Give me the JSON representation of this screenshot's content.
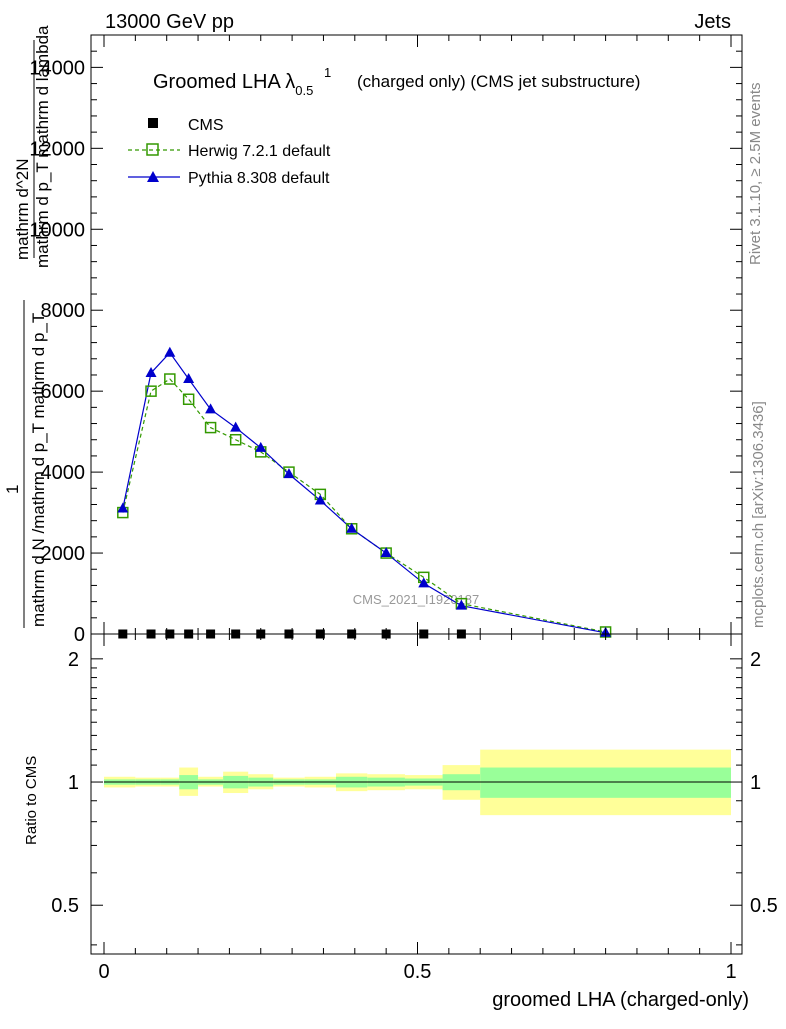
{
  "header": {
    "left": "13000 GeV pp",
    "right": "Jets"
  },
  "side_text": {
    "rivet": "Rivet 3.1.10, ≥ 2.5M events",
    "mcplots": "mcplots.cern.ch [arXiv:1306.3436]"
  },
  "watermark": "CMS_2021_I1920187",
  "colors": {
    "cms": "#000000",
    "herwig": "#339900",
    "pythia": "#0000cc",
    "band_inner": "#99ff99",
    "band_outer": "#ffff99"
  },
  "chart_data": [
    {
      "type": "line",
      "title": "Groomed LHA λ",
      "title_sup": "1",
      "title_sub": "0.5",
      "title_suffix": "(charged only) (CMS jet substructure)",
      "ylabel_main": "1 / mathrm d N /mathrm d p_T mathrm d p_T",
      "ylabel_extra": "mathrm d^2N / mathrm d p_T mathrm d lambda",
      "ylabel_lines": [
        "mathrm d^2N",
        "mathrm d p_T mathrm d lambda",
        "1",
        "mathrm d N /mathrm d p_T mathrm d p_T"
      ],
      "ylim": [
        0,
        14800
      ],
      "yticks": [
        0,
        2000,
        4000,
        6000,
        8000,
        10000,
        12000,
        14000
      ],
      "ytick_labels": [
        "0",
        "2000",
        "4000",
        "6000",
        "8000",
        "10000",
        "12000",
        "14000"
      ],
      "xlim": [
        -0.02,
        1.0
      ],
      "legend": [
        "CMS",
        "Herwig 7.2.1 default",
        "Pythia 8.308 default"
      ],
      "legend_position": "top-left",
      "series": [
        {
          "name": "CMS",
          "x": [
            0.03,
            0.075,
            0.105,
            0.135,
            0.17,
            0.21,
            0.25,
            0.295,
            0.345,
            0.395,
            0.45,
            0.51,
            0.57
          ],
          "y": [
            0,
            0,
            0,
            0,
            0,
            0,
            0,
            0,
            0,
            0,
            0,
            0,
            0
          ]
        },
        {
          "name": "Herwig 7.2.1 default",
          "x": [
            0.03,
            0.075,
            0.105,
            0.135,
            0.17,
            0.21,
            0.25,
            0.295,
            0.345,
            0.395,
            0.45,
            0.51,
            0.57,
            0.8
          ],
          "y": [
            3000,
            6000,
            6300,
            5800,
            5100,
            4800,
            4500,
            4000,
            3450,
            2600,
            2000,
            1400,
            750,
            50
          ]
        },
        {
          "name": "Pythia 8.308 default",
          "x": [
            0.03,
            0.075,
            0.105,
            0.135,
            0.17,
            0.21,
            0.25,
            0.295,
            0.345,
            0.395,
            0.45,
            0.51,
            0.57,
            0.8
          ],
          "y": [
            3100,
            6450,
            6950,
            6300,
            5550,
            5100,
            4600,
            3950,
            3300,
            2600,
            2000,
            1250,
            700,
            30
          ]
        }
      ]
    },
    {
      "type": "area",
      "ylabel": "Ratio to CMS",
      "xlabel": "groomed LHA (charged-only)",
      "ylim": [
        0.38,
        2.3
      ],
      "log_y": true,
      "yticks": [
        0.5,
        1,
        2
      ],
      "ytick_labels": [
        "0.5",
        "1",
        "2"
      ],
      "xticks": [
        0,
        0.5,
        1
      ],
      "xtick_labels": [
        "0",
        "0.5",
        "1"
      ],
      "bins": [
        {
          "x0": 0.0,
          "x1": 0.05,
          "inner": [
            0.985,
            1.015
          ],
          "outer": [
            0.97,
            1.03
          ]
        },
        {
          "x0": 0.05,
          "x1": 0.09,
          "inner": [
            0.985,
            1.015
          ],
          "outer": [
            0.975,
            1.025
          ]
        },
        {
          "x0": 0.09,
          "x1": 0.12,
          "inner": [
            0.985,
            1.015
          ],
          "outer": [
            0.975,
            1.025
          ]
        },
        {
          "x0": 0.12,
          "x1": 0.15,
          "inner": [
            0.96,
            1.04
          ],
          "outer": [
            0.925,
            1.085
          ]
        },
        {
          "x0": 0.15,
          "x1": 0.19,
          "inner": [
            0.985,
            1.015
          ],
          "outer": [
            0.975,
            1.03
          ]
        },
        {
          "x0": 0.19,
          "x1": 0.23,
          "inner": [
            0.965,
            1.035
          ],
          "outer": [
            0.94,
            1.06
          ]
        },
        {
          "x0": 0.23,
          "x1": 0.27,
          "inner": [
            0.975,
            1.025
          ],
          "outer": [
            0.96,
            1.045
          ]
        },
        {
          "x0": 0.27,
          "x1": 0.32,
          "inner": [
            0.985,
            1.015
          ],
          "outer": [
            0.975,
            1.025
          ]
        },
        {
          "x0": 0.32,
          "x1": 0.37,
          "inner": [
            0.985,
            1.015
          ],
          "outer": [
            0.97,
            1.03
          ]
        },
        {
          "x0": 0.37,
          "x1": 0.42,
          "inner": [
            0.97,
            1.03
          ],
          "outer": [
            0.95,
            1.05
          ]
        },
        {
          "x0": 0.42,
          "x1": 0.48,
          "inner": [
            0.975,
            1.025
          ],
          "outer": [
            0.955,
            1.045
          ]
        },
        {
          "x0": 0.48,
          "x1": 0.54,
          "inner": [
            0.98,
            1.02
          ],
          "outer": [
            0.96,
            1.04
          ]
        },
        {
          "x0": 0.54,
          "x1": 0.6,
          "inner": [
            0.955,
            1.045
          ],
          "outer": [
            0.905,
            1.1
          ]
        },
        {
          "x0": 0.6,
          "x1": 1.0,
          "inner": [
            0.915,
            1.085
          ],
          "outer": [
            0.83,
            1.2
          ]
        }
      ]
    }
  ]
}
